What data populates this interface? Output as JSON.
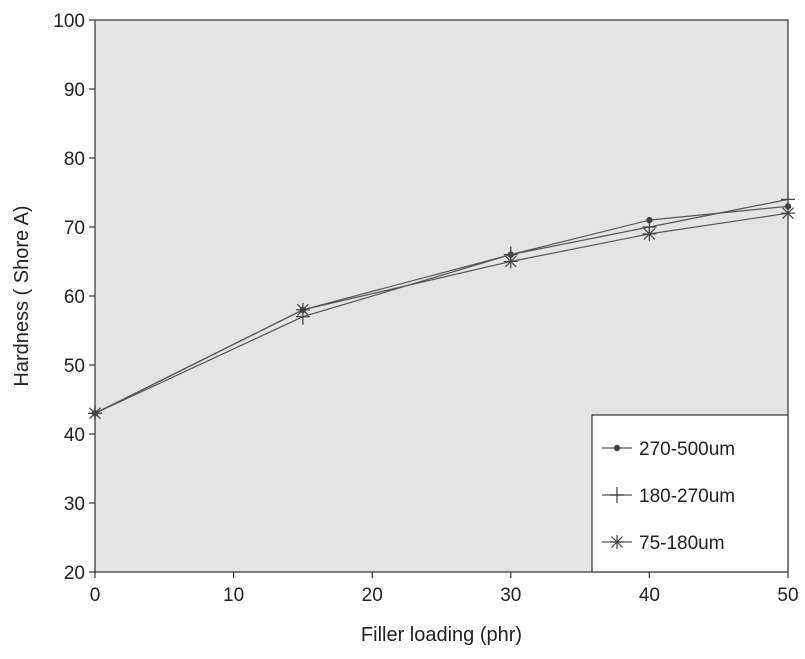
{
  "chart_data": {
    "type": "line",
    "title": "",
    "xlabel": "Filler loading (phr)",
    "ylabel": "Hardness ( Shore A)",
    "xlim": [
      0,
      50
    ],
    "ylim": [
      20,
      100
    ],
    "xticks": [
      "0",
      "10",
      "20",
      "30",
      "40",
      "50"
    ],
    "yticks": [
      "20",
      "30",
      "40",
      "50",
      "60",
      "70",
      "80",
      "90",
      "100"
    ],
    "x": [
      0,
      15,
      30,
      40,
      50
    ],
    "series": [
      {
        "name": "270-500um",
        "values": [
          43,
          58,
          66,
          71,
          73
        ],
        "marker": "dot"
      },
      {
        "name": "180-270um",
        "values": [
          43,
          57,
          66,
          70,
          74
        ],
        "marker": "plus"
      },
      {
        "name": "75-180um",
        "values": [
          43,
          58,
          65,
          69,
          72
        ],
        "marker": "star"
      }
    ],
    "grid": false,
    "legend_position": "bottom-right",
    "plot_background": "#e4e4e4",
    "line_color": "#555555"
  }
}
